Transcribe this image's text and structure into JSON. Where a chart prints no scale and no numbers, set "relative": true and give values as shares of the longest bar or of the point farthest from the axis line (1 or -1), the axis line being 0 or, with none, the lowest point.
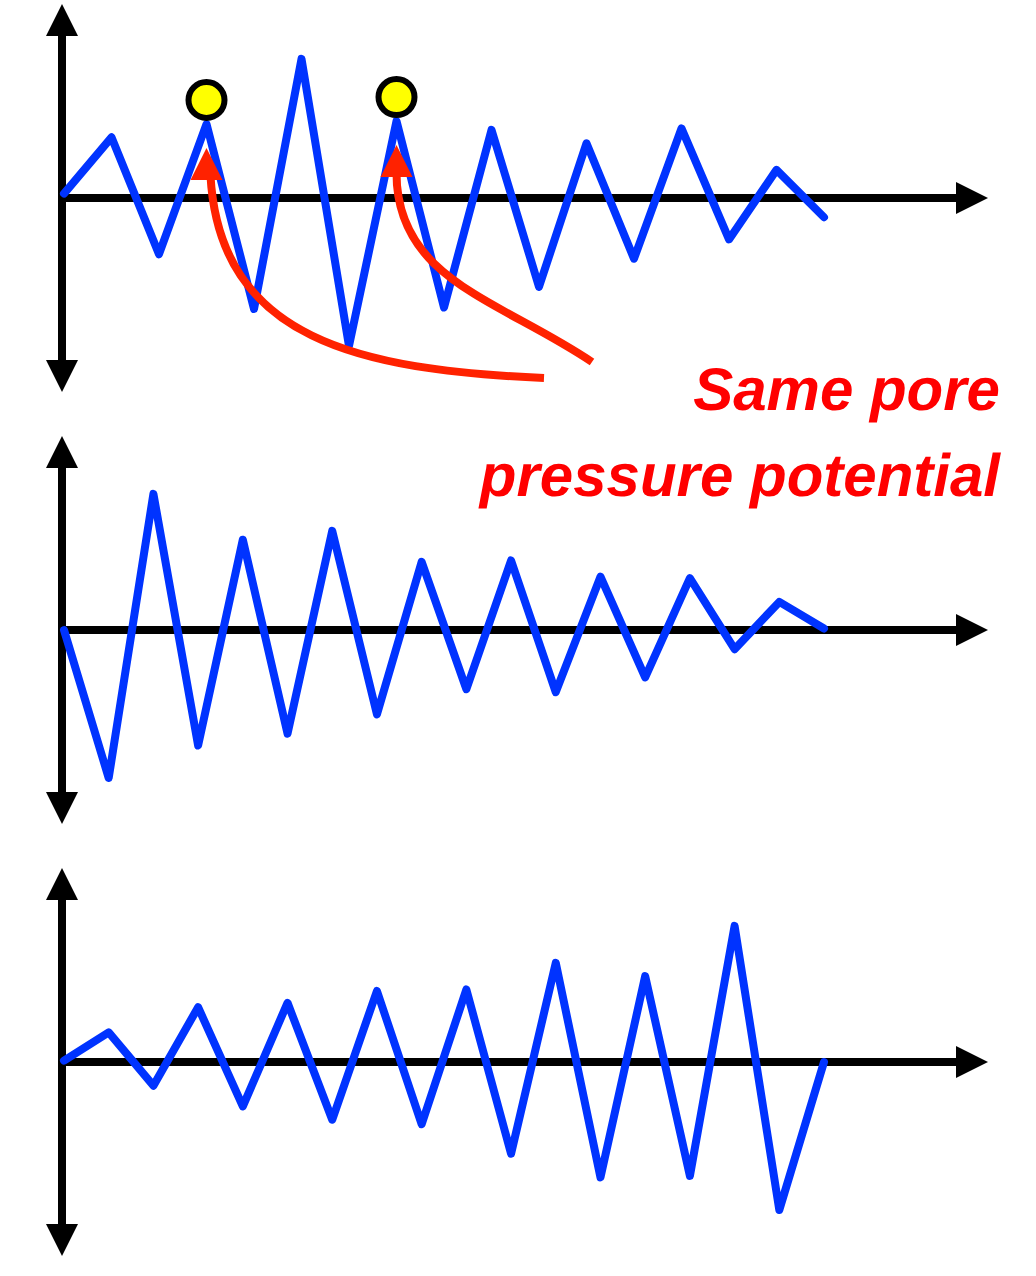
{
  "chart_data": [
    {
      "type": "line",
      "relative": true,
      "line_style": "solid",
      "annotations": [
        "Same pore\npressure potential"
      ],
      "categories": [
        null,
        null,
        null,
        null,
        null,
        null,
        null,
        null,
        null,
        null,
        null,
        null,
        null,
        null,
        null,
        null,
        null
      ],
      "series": [
        {
          "color": "#0033ff",
          "values": [
            0.03,
            0.41,
            -0.38,
            0.5,
            -0.75,
            0.94,
            -1,
            0.52,
            -0.74,
            0.46,
            -0.6,
            0.37,
            -0.41,
            0.47,
            -0.28,
            0.19,
            -0.13
          ]
        }
      ]
    },
    {
      "type": "line",
      "relative": true,
      "line_style": "solid",
      "categories": [
        null,
        null,
        null,
        null,
        null,
        null,
        null,
        null,
        null,
        null,
        null,
        null,
        null,
        null,
        null,
        null,
        null,
        null
      ],
      "series": [
        {
          "color": "#0033ff",
          "values": [
            0,
            -1,
            0.92,
            -0.78,
            0.61,
            -0.7,
            0.67,
            -0.57,
            0.46,
            -0.4,
            0.47,
            -0.42,
            0.36,
            -0.32,
            0.35,
            -0.13,
            0.19,
            0.01
          ]
        }
      ]
    },
    {
      "type": "line",
      "relative": true,
      "line_style": "solid",
      "categories": [
        null,
        null,
        null,
        null,
        null,
        null,
        null,
        null,
        null,
        null,
        null,
        null,
        null,
        null,
        null,
        null,
        null,
        null
      ],
      "series": [
        {
          "color": "#0033ff",
          "values": [
            0.01,
            0.2,
            -0.16,
            0.37,
            -0.3,
            0.4,
            -0.39,
            0.48,
            -0.42,
            0.49,
            -0.62,
            0.67,
            -0.78,
            0.58,
            -0.77,
            0.92,
            -1,
            0
          ]
        }
      ]
    }
  ]
}
